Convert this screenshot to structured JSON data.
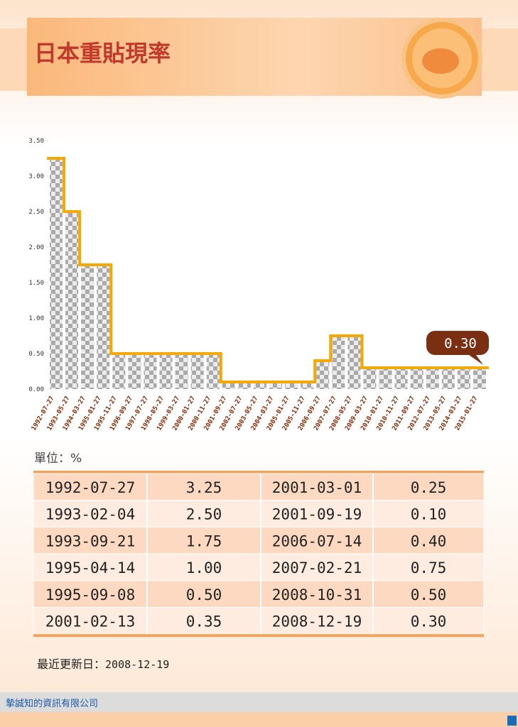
{
  "header": {
    "title": "日本重貼現率"
  },
  "chart_data": {
    "type": "line",
    "step": true,
    "color": "#f5a800",
    "bar_color": "#9a9a9a",
    "categories": [
      "1992-07-27",
      "1993-05-27",
      "1994-03-27",
      "1995-01-27",
      "1995-11-27",
      "1996-09-27",
      "1997-07-27",
      "1998-05-27",
      "1999-03-27",
      "2000-01-27",
      "2000-11-27",
      "2001-09-27",
      "2002-07-27",
      "2003-05-27",
      "2004-03-27",
      "2005-01-27",
      "2005-11-27",
      "2006-09-27",
      "2007-07-27",
      "2008-05-27",
      "2009-03-27",
      "2010-01-27",
      "2010-11-27",
      "2011-09-27",
      "2012-07-27",
      "2013-05-27",
      "2014-03-27",
      "2015-01-27"
    ],
    "values": [
      3.25,
      2.5,
      1.75,
      1.75,
      0.5,
      0.5,
      0.5,
      0.5,
      0.5,
      0.5,
      0.5,
      0.1,
      0.1,
      0.1,
      0.1,
      0.1,
      0.1,
      0.4,
      0.75,
      0.75,
      0.3,
      0.3,
      0.3,
      0.3,
      0.3,
      0.3,
      0.3,
      0.3
    ],
    "annotation": "0.30",
    "ylim": [
      0,
      3.5
    ],
    "yticks": [
      {
        "value": 0,
        "label": "0.00"
      },
      {
        "value": 0.5,
        "label": "0.50"
      },
      {
        "value": 1,
        "label": "1.00"
      },
      {
        "value": 1.5,
        "label": "1.50"
      },
      {
        "value": 2,
        "label": "2.00"
      },
      {
        "value": 2.5,
        "label": "2.50"
      },
      {
        "value": 3,
        "label": "3.00"
      },
      {
        "value": 3.5,
        "label": "3.50"
      }
    ]
  },
  "unit": "單位：%",
  "table": {
    "rows": [
      [
        "1992-07-27",
        "3.25",
        "2001-03-01",
        "0.25"
      ],
      [
        "1993-02-04",
        "2.50",
        "2001-09-19",
        "0.10"
      ],
      [
        "1993-09-21",
        "1.75",
        "2006-07-14",
        "0.40"
      ],
      [
        "1995-04-14",
        "1.00",
        "2007-02-21",
        "0.75"
      ],
      [
        "1995-09-08",
        "0.50",
        "2008-10-31",
        "0.50"
      ],
      [
        "2001-02-13",
        "0.35",
        "2008-12-19",
        "0.30"
      ]
    ]
  },
  "update": {
    "label": "最近更新日：",
    "date": "2008-12-19"
  },
  "footer": {
    "company": "摯誠知的資訊有限公司"
  }
}
